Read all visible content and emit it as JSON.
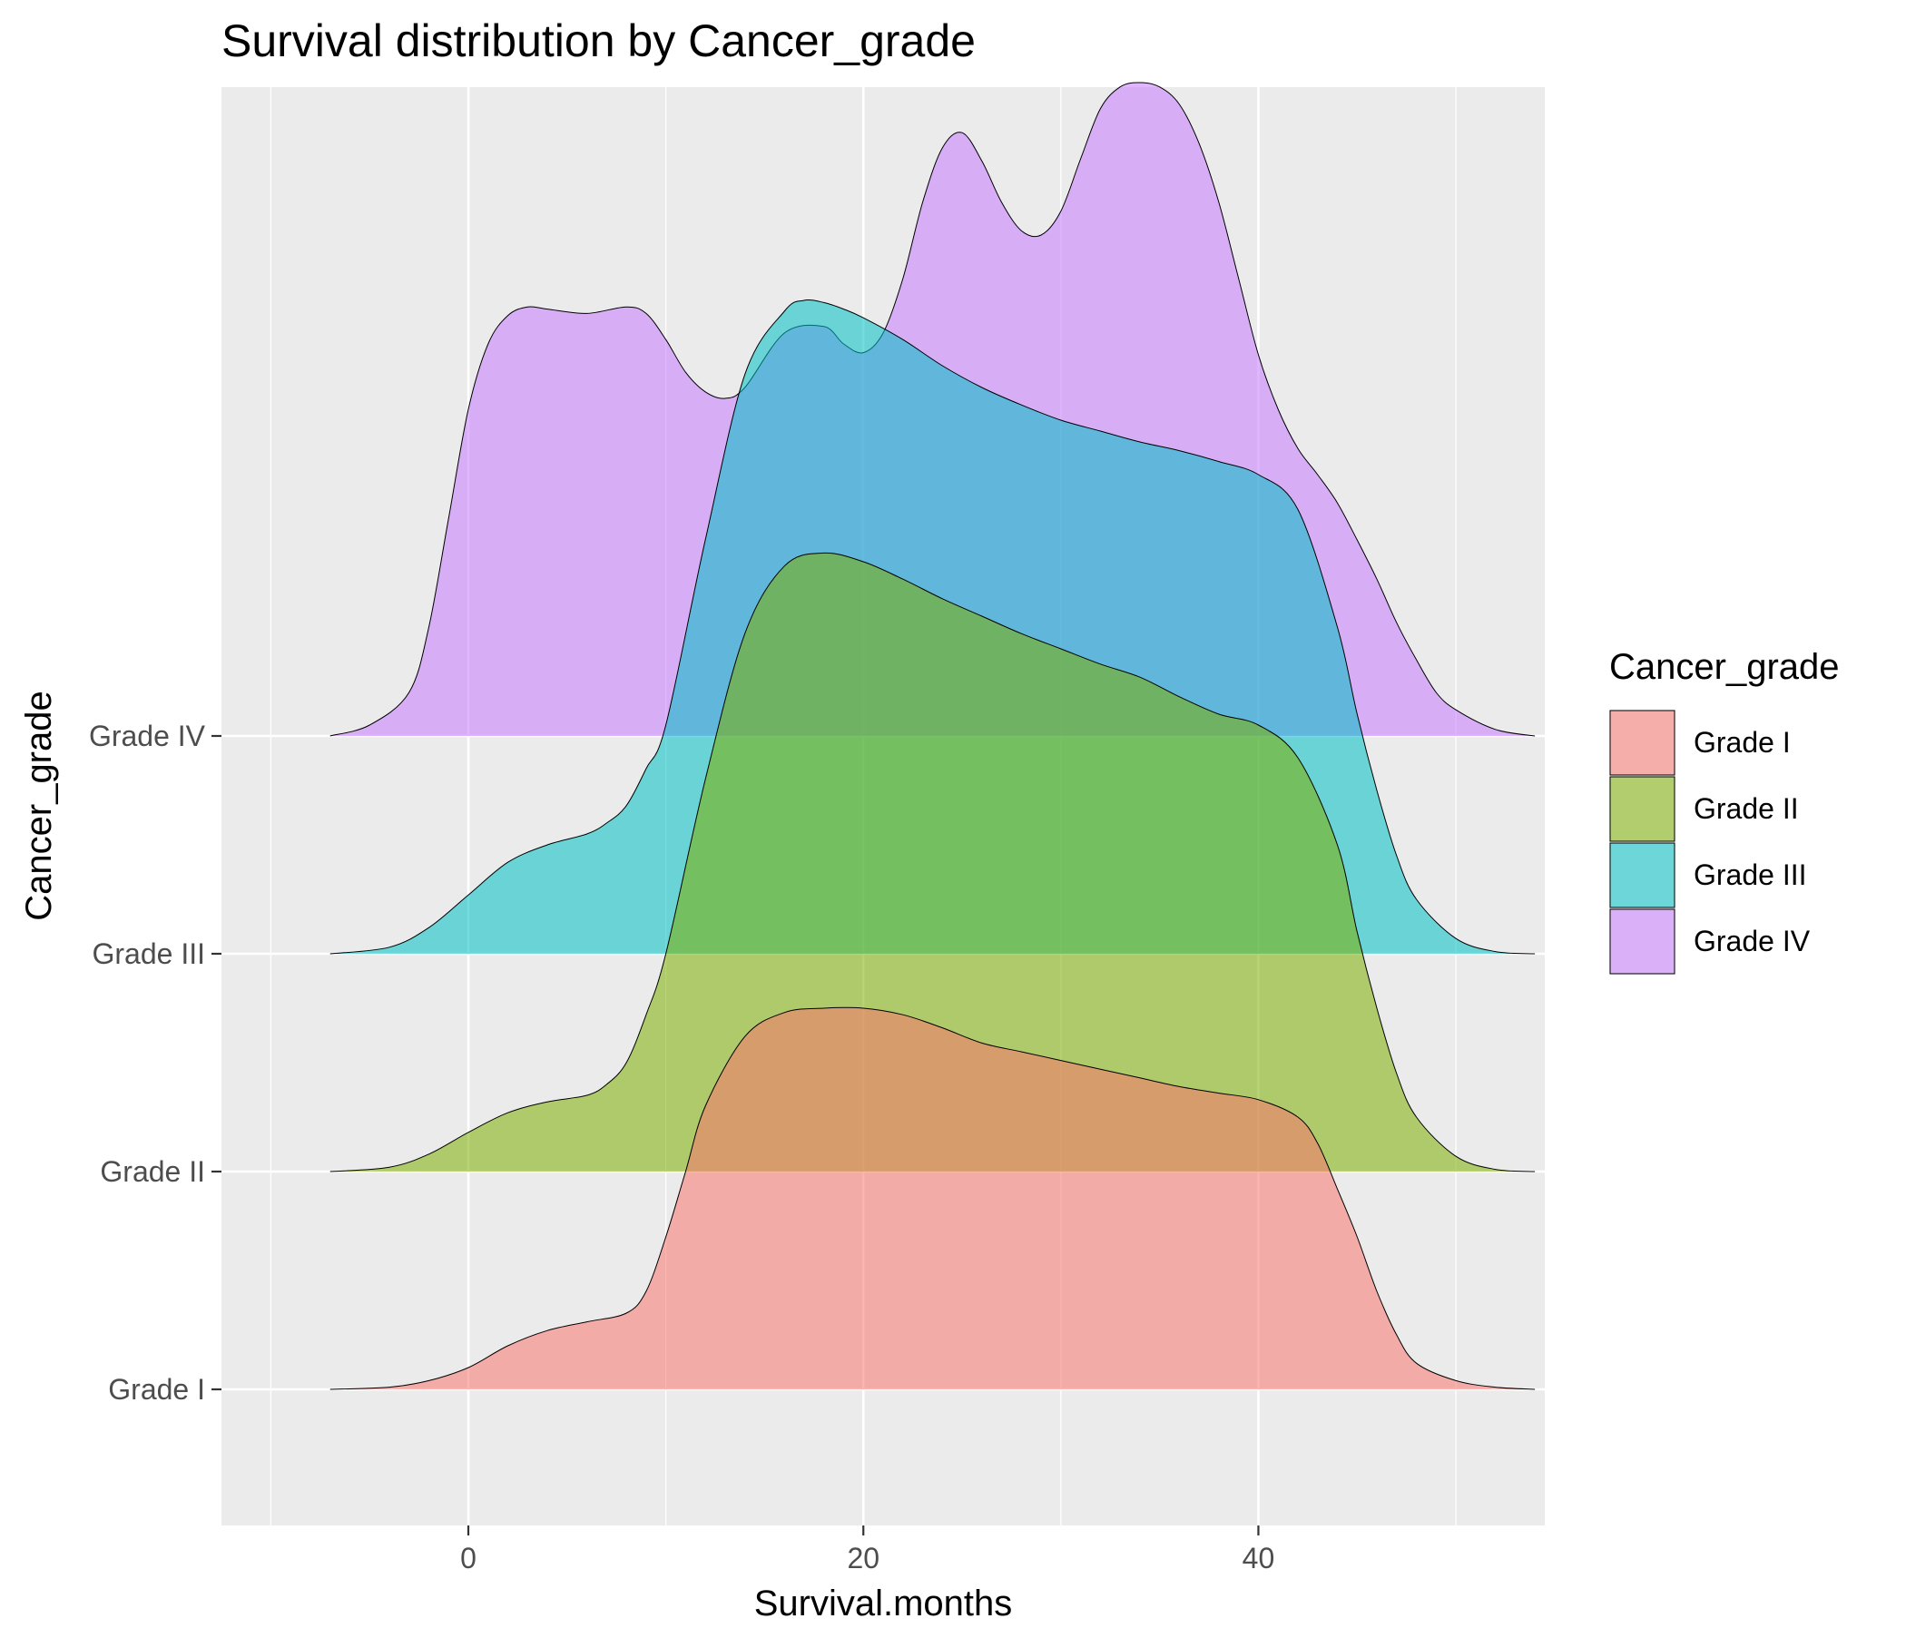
{
  "chart_data": {
    "type": "ridgeline",
    "title": "Survival distribution by Cancer_grade",
    "xlabel": "Survival.months",
    "ylabel": "Cancer_grade",
    "xlim": [
      -12.5,
      54.5
    ],
    "x_ticks": [
      0,
      20,
      40
    ],
    "x_minor_grid": [
      -10,
      10,
      30,
      50
    ],
    "categories": [
      "Grade I",
      "Grade II",
      "Grade III",
      "Grade IV"
    ],
    "ridge_scale_note": "heights in units of category spacing (1 = distance between adjacent ridge baselines)",
    "legend": {
      "title": "Cancer_grade",
      "position": "right"
    },
    "grid": true,
    "colors": {
      "panel_bg": "#EBEBEB",
      "grid": "#FFFFFF",
      "outline": "#000000",
      "Grade I": "#F8766D",
      "Grade II": "#7CAE00",
      "Grade III": "#00BFC4",
      "Grade IV": "#C77CFF"
    },
    "fill_opacity": 0.55,
    "series": [
      {
        "name": "Grade I",
        "x": [
          -7,
          -4,
          -2,
          0,
          2,
          4,
          6,
          8,
          9,
          10,
          11,
          12,
          14,
          16,
          18,
          20,
          22,
          24,
          26,
          28,
          30,
          32,
          34,
          36,
          38,
          40,
          42,
          43,
          44,
          45,
          46,
          47,
          48,
          50,
          52,
          54
        ],
        "y": [
          0,
          0.01,
          0.04,
          0.1,
          0.2,
          0.27,
          0.31,
          0.35,
          0.45,
          0.7,
          1.0,
          1.3,
          1.62,
          1.73,
          1.75,
          1.75,
          1.72,
          1.66,
          1.59,
          1.55,
          1.51,
          1.47,
          1.43,
          1.39,
          1.36,
          1.33,
          1.25,
          1.13,
          0.92,
          0.7,
          0.45,
          0.25,
          0.12,
          0.04,
          0.01,
          0
        ]
      },
      {
        "name": "Grade II",
        "x": [
          -7,
          -4,
          -2,
          0,
          2,
          4,
          6,
          7,
          8,
          9,
          10,
          12,
          14,
          16,
          18,
          20,
          22,
          24,
          26,
          28,
          30,
          32,
          34,
          36,
          38,
          40,
          42,
          44,
          45,
          46,
          47,
          48,
          50,
          52,
          54
        ],
        "y": [
          0,
          0.02,
          0.08,
          0.18,
          0.27,
          0.32,
          0.35,
          0.4,
          0.5,
          0.72,
          1.0,
          1.8,
          2.47,
          2.78,
          2.84,
          2.8,
          2.72,
          2.63,
          2.55,
          2.47,
          2.4,
          2.33,
          2.27,
          2.18,
          2.1,
          2.05,
          1.9,
          1.5,
          1.1,
          0.75,
          0.45,
          0.25,
          0.07,
          0.01,
          0
        ]
      },
      {
        "name": "Grade III",
        "x": [
          -7,
          -4,
          -2,
          0,
          2,
          4,
          6,
          7,
          8,
          9,
          10,
          12,
          14,
          16,
          17,
          18,
          19,
          20,
          22,
          24,
          26,
          28,
          30,
          32,
          34,
          36,
          38,
          40,
          42,
          44,
          45,
          46,
          47,
          48,
          50,
          52,
          54
        ],
        "y": [
          0,
          0.03,
          0.12,
          0.27,
          0.42,
          0.5,
          0.55,
          0.6,
          0.68,
          0.85,
          1.05,
          1.9,
          2.66,
          2.95,
          3.0,
          2.99,
          2.96,
          2.92,
          2.82,
          2.7,
          2.6,
          2.52,
          2.45,
          2.4,
          2.35,
          2.31,
          2.26,
          2.2,
          2.04,
          1.5,
          1.1,
          0.75,
          0.45,
          0.25,
          0.07,
          0.01,
          0
        ]
      },
      {
        "name": "Grade IV",
        "x": [
          -7,
          -5,
          -3,
          -2,
          -1,
          0,
          1,
          2,
          3,
          4,
          6,
          8,
          9,
          10,
          11,
          12,
          13,
          14,
          16,
          18,
          19,
          20,
          21,
          22,
          23,
          24,
          25,
          26,
          27,
          28,
          29,
          30,
          31,
          32,
          33,
          34,
          35,
          36,
          37,
          38,
          39,
          40,
          41,
          42,
          43,
          44,
          45,
          46,
          47,
          48,
          49,
          50,
          52,
          54
        ],
        "y": [
          0,
          0.05,
          0.2,
          0.5,
          1.0,
          1.5,
          1.8,
          1.93,
          1.97,
          1.96,
          1.94,
          1.97,
          1.94,
          1.82,
          1.67,
          1.58,
          1.55,
          1.6,
          1.85,
          1.88,
          1.8,
          1.76,
          1.85,
          2.1,
          2.45,
          2.7,
          2.77,
          2.64,
          2.45,
          2.32,
          2.3,
          2.41,
          2.65,
          2.88,
          2.98,
          3.0,
          2.98,
          2.9,
          2.72,
          2.45,
          2.1,
          1.75,
          1.5,
          1.32,
          1.2,
          1.07,
          0.9,
          0.72,
          0.52,
          0.35,
          0.2,
          0.12,
          0.03,
          0
        ]
      }
    ]
  }
}
